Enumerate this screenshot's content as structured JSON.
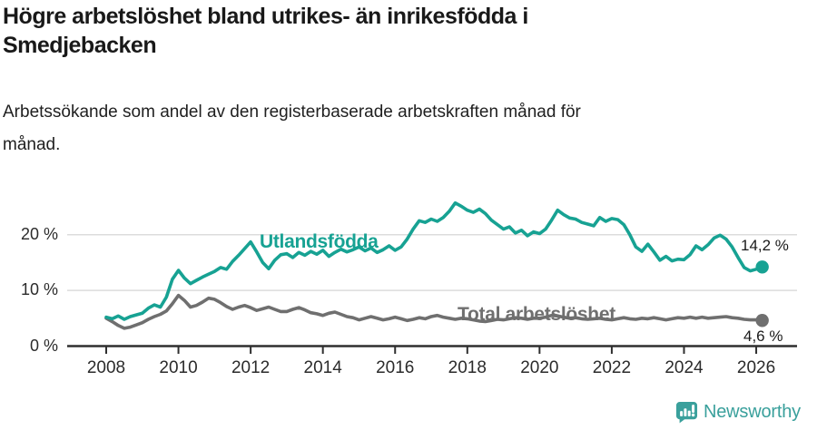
{
  "header": {
    "title_lines": [
      "Högre arbetslöshet bland utrikes- än inrikesfödda i",
      "Smedjebacken"
    ],
    "subtitle_lines": [
      "Arbetssökande som andel av den registerbaserade arbetskraften månad för",
      "månad."
    ]
  },
  "chart_data": {
    "type": "line",
    "title": "Högre arbetslöshet bland utrikes- än inrikesfödda i Smedjebacken",
    "subtitle": "Arbetssökande som andel av den registerbaserade arbetskraften månad för månad.",
    "unit": "%",
    "x": {
      "start_year": 2008,
      "step_months": 2,
      "end_label_year": 2026,
      "tick_years": [
        2008,
        2010,
        2012,
        2014,
        2016,
        2018,
        2020,
        2022,
        2024,
        2026
      ]
    },
    "y": {
      "range": [
        0,
        27
      ],
      "grid": true,
      "ticks": [
        {
          "value": 0,
          "label": "0 %"
        },
        {
          "value": 10,
          "label": "10 %"
        },
        {
          "value": 20,
          "label": "20 %"
        }
      ]
    },
    "legend_position": "inline",
    "series": [
      {
        "name": "Utlandsfödda",
        "color": "#17a293",
        "last_value": 14.2,
        "end_value_label": "14,2 %",
        "values": [
          5.2,
          4.9,
          5.4,
          4.8,
          5.3,
          5.6,
          5.9,
          6.8,
          7.4,
          7.0,
          8.8,
          12.0,
          13.6,
          12.2,
          11.2,
          11.8,
          12.4,
          12.9,
          13.4,
          14.1,
          13.8,
          15.2,
          16.3,
          17.5,
          18.7,
          16.9,
          15.0,
          13.9,
          15.4,
          16.4,
          16.6,
          15.9,
          16.8,
          16.3,
          17.0,
          16.5,
          17.2,
          16.1,
          16.8,
          17.4,
          16.9,
          17.3,
          17.8,
          17.1,
          17.6,
          16.8,
          17.3,
          18.0,
          17.2,
          17.8,
          19.2,
          21.0,
          22.5,
          22.2,
          22.8,
          22.4,
          23.1,
          24.2,
          25.7,
          25.1,
          24.4,
          24.0,
          24.6,
          23.8,
          22.6,
          21.8,
          21.0,
          21.4,
          20.3,
          20.8,
          19.8,
          20.5,
          20.2,
          21.0,
          22.6,
          24.4,
          23.6,
          23.0,
          22.8,
          22.2,
          21.9,
          21.6,
          23.1,
          22.4,
          22.9,
          22.7,
          21.8,
          20.0,
          17.8,
          17.0,
          18.3,
          16.9,
          15.4,
          16.1,
          15.3,
          15.6,
          15.5,
          16.4,
          18.0,
          17.3,
          18.2,
          19.4,
          19.9,
          19.2,
          17.8,
          15.9,
          14.1,
          13.5,
          13.8,
          14.2
        ]
      },
      {
        "name": "Total arbetslöshet",
        "color": "#6f6f6f",
        "last_value": 4.6,
        "end_value_label": "4,6 %",
        "values": [
          5.0,
          4.4,
          3.7,
          3.2,
          3.4,
          3.8,
          4.2,
          4.8,
          5.3,
          5.7,
          6.3,
          7.6,
          9.1,
          8.2,
          7.0,
          7.3,
          7.9,
          8.6,
          8.4,
          7.8,
          7.1,
          6.6,
          7.0,
          7.3,
          6.9,
          6.4,
          6.7,
          7.0,
          6.6,
          6.2,
          6.2,
          6.6,
          6.9,
          6.5,
          6.0,
          5.8,
          5.5,
          5.9,
          6.1,
          5.7,
          5.3,
          5.1,
          4.7,
          5.0,
          5.3,
          5.0,
          4.7,
          4.9,
          5.2,
          4.9,
          4.6,
          4.8,
          5.1,
          4.9,
          5.3,
          5.5,
          5.2,
          5.0,
          4.8,
          5.0,
          4.9,
          4.7,
          4.5,
          4.4,
          4.6,
          4.8,
          4.7,
          4.9,
          5.1,
          5.0,
          4.8,
          5.0,
          5.0,
          5.2,
          5.5,
          5.4,
          5.2,
          5.0,
          5.1,
          4.9,
          4.8,
          4.9,
          5.0,
          4.8,
          4.7,
          4.9,
          5.1,
          4.9,
          4.8,
          5.0,
          4.9,
          5.1,
          4.9,
          4.7,
          4.9,
          5.1,
          5.0,
          5.2,
          5.0,
          5.2,
          5.0,
          5.1,
          5.2,
          5.3,
          5.1,
          5.0,
          4.8,
          4.7,
          4.7,
          4.6
        ]
      }
    ]
  },
  "footer": {
    "brand": "Newsworthy",
    "logo_icon": "bar-chart-speech-bubble-icon",
    "brand_color": "#3aa09c"
  }
}
